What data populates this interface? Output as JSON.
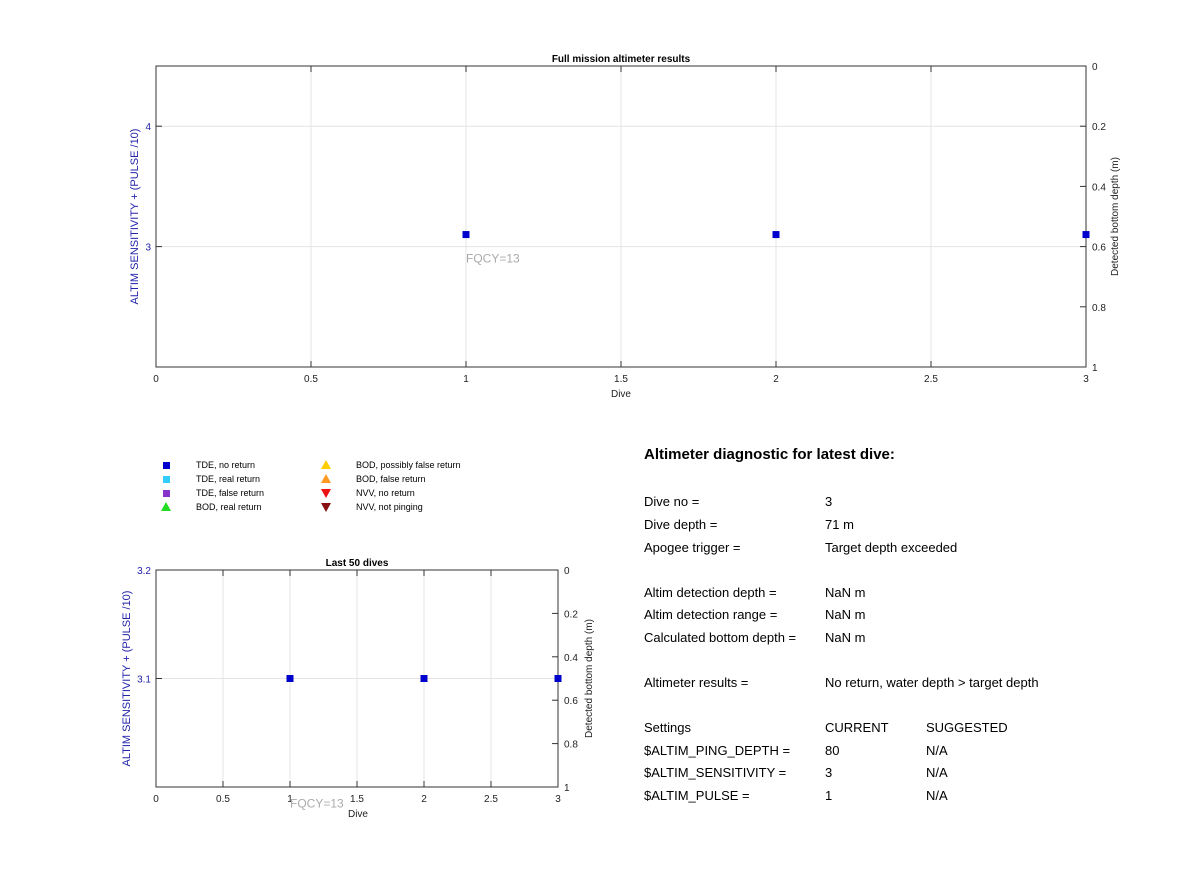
{
  "chart_data": [
    {
      "type": "scatter",
      "title": "Full mission altimeter results",
      "xlabel": "Dive",
      "ylabel": "ALTIM SENSITIVITY + (PULSE /10)",
      "y2label": "Detected bottom depth (m)",
      "xlim": [
        0,
        3
      ],
      "ylim": [
        2,
        4.5
      ],
      "y2lim": [
        0,
        1
      ],
      "x_ticks": [
        "0",
        "0.5",
        "1",
        "1.5",
        "2",
        "2.5",
        "3"
      ],
      "y_ticks": [
        "3",
        "4"
      ],
      "y2_ticks": [
        "0",
        "0.2",
        "0.4",
        "0.6",
        "0.8",
        "1"
      ],
      "grid": true,
      "series": [
        {
          "name": "TDE, no return",
          "x": [
            1,
            2,
            3
          ],
          "y": [
            3.1,
            3.1,
            3.1
          ],
          "color": "#0000cc"
        }
      ],
      "annotation": {
        "text": "FQCY=13",
        "x": 1,
        "y": 2.9
      }
    },
    {
      "type": "scatter",
      "title": "Last 50 dives",
      "xlabel": "Dive",
      "ylabel": "ALTIM SENSITIVITY + (PULSE /10)",
      "y2label": "Detected bottom depth (m)",
      "xlim": [
        0,
        3
      ],
      "ylim": [
        3,
        3.2
      ],
      "y2lim": [
        0,
        1
      ],
      "x_ticks": [
        "0",
        "0.5",
        "1",
        "1.5",
        "2",
        "2.5",
        "3"
      ],
      "y_ticks": [
        "3.1",
        "3.2"
      ],
      "y2_ticks": [
        "0",
        "0.2",
        "0.4",
        "0.6",
        "0.8",
        "1"
      ],
      "grid": true,
      "series": [
        {
          "name": "TDE, no return",
          "x": [
            1,
            2,
            3
          ],
          "y": [
            3.1,
            3.1,
            3.1
          ],
          "color": "#0000cc"
        }
      ],
      "annotation": {
        "text": "FQCY=13",
        "x": 1,
        "y": 2.985
      }
    }
  ],
  "legend": [
    {
      "label": "TDE, no return",
      "shape": "square",
      "color": "#0000cc"
    },
    {
      "label": "TDE, real return",
      "shape": "square",
      "color": "#33ccff"
    },
    {
      "label": "TDE, false return",
      "shape": "square",
      "color": "#8833cc"
    },
    {
      "label": "BOD, real return",
      "shape": "triangle-up",
      "color": "#22dd22"
    },
    {
      "label": "BOD, possibly false return",
      "shape": "triangle-up",
      "color": "#ffcc00"
    },
    {
      "label": "BOD, false return",
      "shape": "triangle-up",
      "color": "#ff9922"
    },
    {
      "label": "NVV, no return",
      "shape": "triangle-down",
      "color": "#ee1111"
    },
    {
      "label": "NVV, not pinging",
      "shape": "triangle-down",
      "color": "#881111"
    }
  ],
  "diagnostic": {
    "title": "Altimeter diagnostic for latest dive:",
    "rows": [
      {
        "label": "Dive no =",
        "value": "3"
      },
      {
        "label": "Dive depth =",
        "value": "71 m"
      },
      {
        "label": "Apogee trigger =",
        "value": "Target depth exceeded"
      },
      {
        "label": "Altim detection depth =",
        "value": "NaN m"
      },
      {
        "label": "Altim detection range =",
        "value": "NaN m"
      },
      {
        "label": "Calculated bottom depth =",
        "value": "NaN m"
      },
      {
        "label": "Altimeter results =",
        "value": "No return, water depth > target depth"
      }
    ],
    "settings_header": {
      "label": "Settings",
      "current": "CURRENT",
      "suggested": "SUGGESTED"
    },
    "settings": [
      {
        "label": "$ALTIM_PING_DEPTH =",
        "current": "80",
        "suggested": "N/A"
      },
      {
        "label": "$ALTIM_SENSITIVITY =",
        "current": "3",
        "suggested": "N/A"
      },
      {
        "label": "$ALTIM_PULSE =",
        "current": "1",
        "suggested": "N/A"
      }
    ]
  },
  "colors": {
    "axis_left": "#2222aa",
    "marker": "#0000cc",
    "annotation": "#aaaaaa",
    "grid": "#e4e4e4"
  }
}
